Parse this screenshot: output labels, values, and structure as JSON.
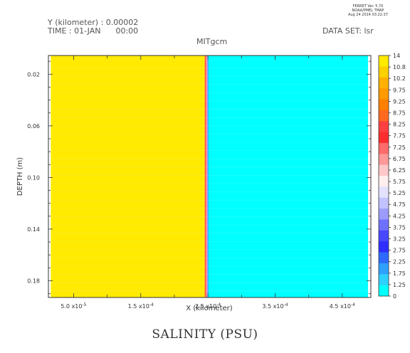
{
  "header": {
    "version_line1": "FERRET Ver. 5.70",
    "version_line2": "NOAA/PMEL TMAP",
    "version_line3": "Aug 24 2014 03:22:37",
    "y_info": "Y (kilometer) : 0.00002",
    "time_info": "TIME : 01-JAN      00:00",
    "dataset": "DATA SET: lsr",
    "model": "MITgcm"
  },
  "chart_data": {
    "type": "heatmap",
    "title": "SALINITY (PSU)",
    "xlabel": "X (kilometer)",
    "ylabel": "DEPTH (m)",
    "x_ticks": [
      {
        "value": 5e-05,
        "mant": "5.0",
        "exp": "-5"
      },
      {
        "value": 0.00015,
        "mant": "1.5",
        "exp": "-4"
      },
      {
        "value": 0.00025,
        "mant": "2.5",
        "exp": "-4"
      },
      {
        "value": 0.00035,
        "mant": "3.5",
        "exp": "-4"
      },
      {
        "value": 0.00045,
        "mant": "4.5",
        "exp": "-4"
      }
    ],
    "xlim": [
      1.25e-05,
      0.0004925
    ],
    "y_ticks": [
      "0.02",
      "0.06",
      "0.10",
      "0.14",
      "0.18"
    ],
    "y_tick_values": [
      0.02,
      0.06,
      0.1,
      0.14,
      0.18
    ],
    "ylim": [
      0.0055,
      0.193
    ],
    "y_inverted": true,
    "field": [
      {
        "x_from": 1.25e-05,
        "x_to": 1.605e-05,
        "salinity": null,
        "color": "#ffffff"
      },
      {
        "x_from": 1.605e-05,
        "x_to": 0.000245,
        "salinity": 12,
        "color": "#ffea00"
      },
      {
        "x_from": 0.000245,
        "x_to": 0.000246,
        "salinity": 9,
        "color": "#ff8c1a"
      },
      {
        "x_from": 0.000246,
        "x_to": 0.0002475,
        "salinity": 8,
        "color": "#ff3344"
      },
      {
        "x_from": 0.0002475,
        "x_to": 0.0002485,
        "salinity": 6.5,
        "color": "#ff9aa0"
      },
      {
        "x_from": 0.0002485,
        "x_to": 0.0002495,
        "salinity": 5,
        "color": "#aaaaee"
      },
      {
        "x_from": 0.0002495,
        "x_to": 0.0002505,
        "salinity": 3.5,
        "color": "#5555ff"
      },
      {
        "x_from": 0.0002505,
        "x_to": 0.00048845,
        "salinity": 0.5,
        "color": "#00ffff"
      },
      {
        "x_from": 0.00048845,
        "x_to": 0.0004925,
        "salinity": null,
        "color": "#ffffff"
      }
    ],
    "colorbar": {
      "labels": [
        "14",
        "10.8",
        "10.2",
        "9.75",
        "9.25",
        "8.75",
        "8.25",
        "7.75",
        "7.25",
        "6.75",
        "6.25",
        "5.75",
        "5.25",
        "4.75",
        "4.25",
        "3.75",
        "3.25",
        "2.75",
        "2.25",
        "1.75",
        "1.25",
        "0"
      ],
      "colors": [
        "#ffea00",
        "#ffd000",
        "#ffb000",
        "#ff9a00",
        "#ff8000",
        "#ff6a20",
        "#ff4040",
        "#ff2e2e",
        "#ff6a6a",
        "#ff9898",
        "#ffc8c8",
        "#ffeeee",
        "#e2e2ff",
        "#c2c2ff",
        "#9c9cff",
        "#7070ff",
        "#4848ff",
        "#2e2eff",
        "#2e6aff",
        "#2ea0ff",
        "#2ed0ff",
        "#00ffff"
      ]
    }
  }
}
